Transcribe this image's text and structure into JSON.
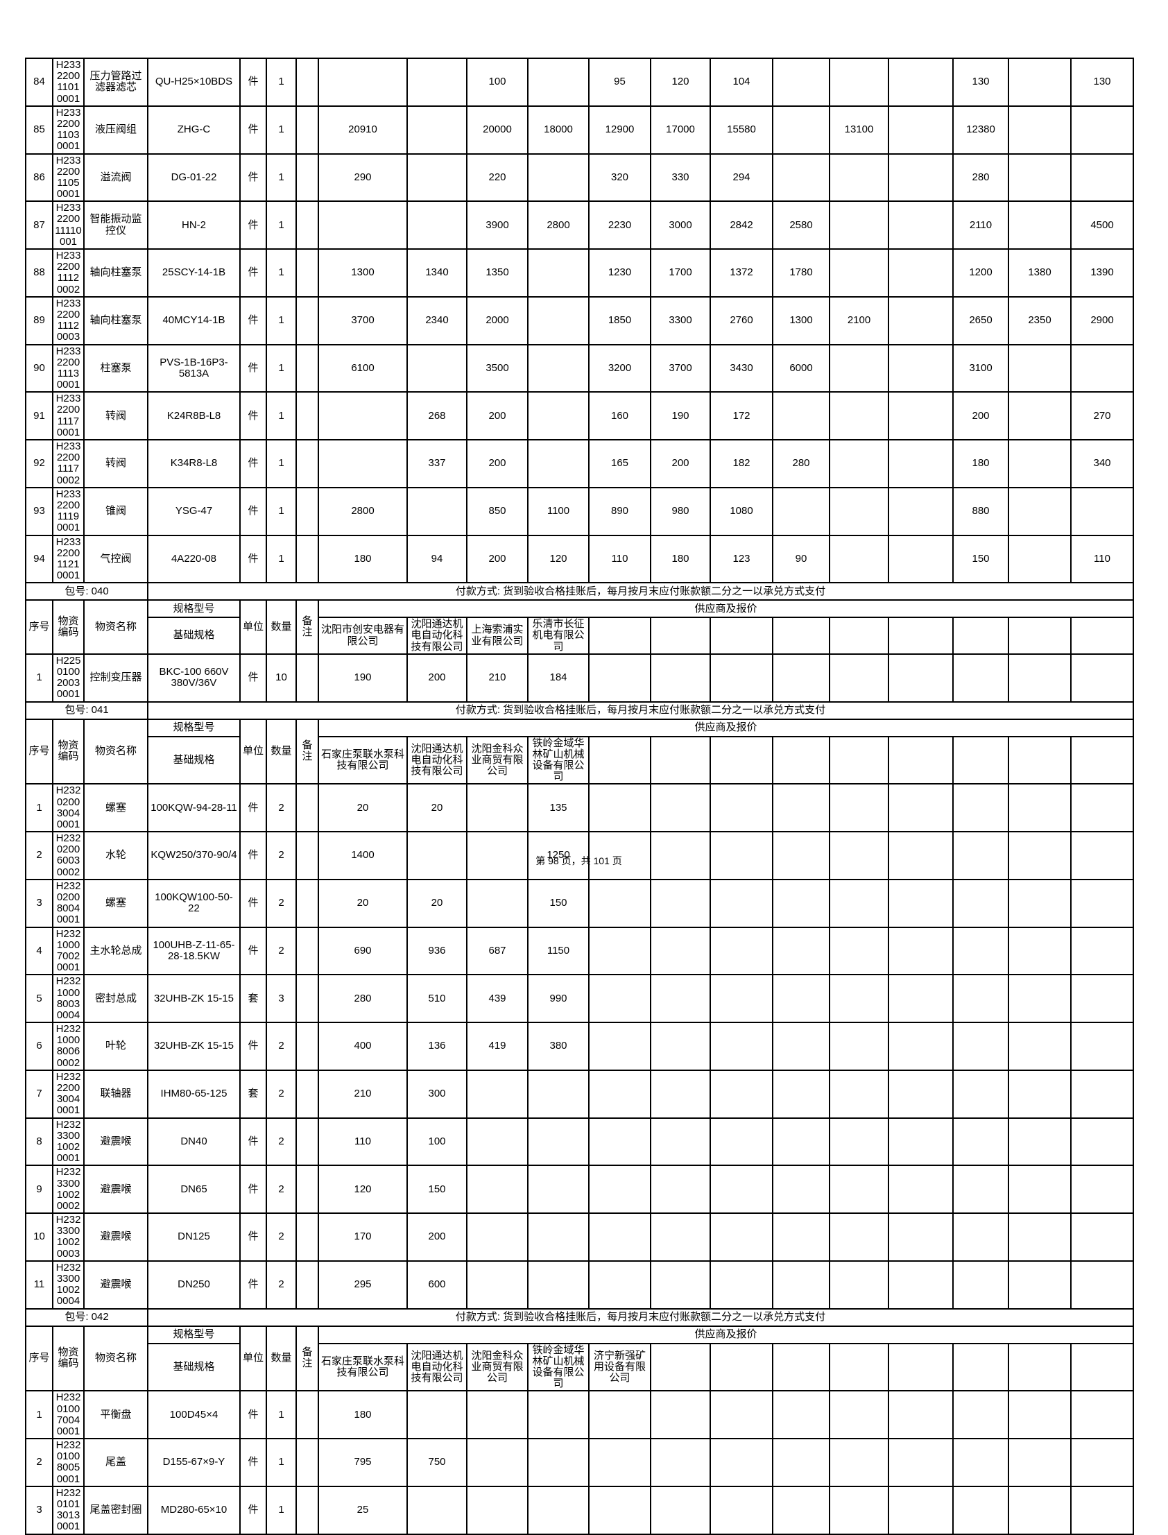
{
  "labels": {
    "seq": "序号",
    "material_code": "物资编码",
    "material_name": "物资名称",
    "spec_model": "规格型号",
    "base_spec": "基础规格",
    "unit": "单位",
    "qty": "数量",
    "remark": "备注",
    "suppliers_and_quotes": "供应商及报价",
    "package_label": "包号:",
    "payment_text": "付款方式: 货到验收合格挂账后，每月按月末应付账款额二分之一以承兑方式支付"
  },
  "price_col_count": 13,
  "continuation_rows": [
    {
      "seq": "84",
      "code": [
        "H2332200",
        "11010001"
      ],
      "name": "压力管路过滤器滤芯",
      "spec": "QU-H25×10BDS",
      "unit": "件",
      "qty": "1",
      "remark": "",
      "prices": [
        "",
        "",
        "100",
        "",
        "95",
        "120",
        "104",
        "",
        "",
        "",
        "130",
        "",
        "130"
      ]
    },
    {
      "seq": "85",
      "code": [
        "H2332200",
        "11030001"
      ],
      "name": "液压阀组",
      "spec": "ZHG-C",
      "unit": "件",
      "qty": "1",
      "remark": "",
      "prices": [
        "20910",
        "",
        "20000",
        "18000",
        "12900",
        "17000",
        "15580",
        "",
        "13100",
        "",
        "12380",
        "",
        ""
      ]
    },
    {
      "seq": "86",
      "code": [
        "H2332200",
        "11050001"
      ],
      "name": "溢流阀",
      "spec": "DG-01-22",
      "unit": "件",
      "qty": "1",
      "remark": "",
      "prices": [
        "290",
        "",
        "220",
        "",
        "320",
        "330",
        "294",
        "",
        "",
        "",
        "280",
        "",
        ""
      ]
    },
    {
      "seq": "87",
      "code": [
        "H2332200",
        "11110001"
      ],
      "name": "智能振动监控仪",
      "spec": "HN-2",
      "unit": "件",
      "qty": "1",
      "remark": "",
      "prices": [
        "",
        "",
        "3900",
        "2800",
        "2230",
        "3000",
        "2842",
        "2580",
        "",
        "",
        "2110",
        "",
        "4500"
      ]
    },
    {
      "seq": "88",
      "code": [
        "H2332200",
        "11120002"
      ],
      "name": "轴向柱塞泵",
      "spec": "25SCY-14-1B",
      "unit": "件",
      "qty": "1",
      "remark": "",
      "prices": [
        "1300",
        "1340",
        "1350",
        "",
        "1230",
        "1700",
        "1372",
        "1780",
        "",
        "",
        "1200",
        "1380",
        "1390"
      ]
    },
    {
      "seq": "89",
      "code": [
        "H2332200",
        "11120003"
      ],
      "name": "轴向柱塞泵",
      "spec": "40MCY14-1B",
      "unit": "件",
      "qty": "1",
      "remark": "",
      "prices": [
        "3700",
        "2340",
        "2000",
        "",
        "1850",
        "3300",
        "2760",
        "1300",
        "2100",
        "",
        "2650",
        "2350",
        "2900"
      ]
    },
    {
      "seq": "90",
      "code": [
        "H2332200",
        "11130001"
      ],
      "name": "柱塞泵",
      "spec": "PVS-1B-16P3-5813A",
      "unit": "件",
      "qty": "1",
      "remark": "",
      "prices": [
        "6100",
        "",
        "3500",
        "",
        "3200",
        "3700",
        "3430",
        "6000",
        "",
        "",
        "3100",
        "",
        ""
      ]
    },
    {
      "seq": "91",
      "code": [
        "H2332200",
        "11170001"
      ],
      "name": "转阀",
      "spec": "K24R8B-L8",
      "unit": "件",
      "qty": "1",
      "remark": "",
      "prices": [
        "",
        "268",
        "200",
        "",
        "160",
        "190",
        "172",
        "",
        "",
        "",
        "200",
        "",
        "270"
      ]
    },
    {
      "seq": "92",
      "code": [
        "H2332200",
        "11170002"
      ],
      "name": "转阀",
      "spec": "K34R8-L8",
      "unit": "件",
      "qty": "1",
      "remark": "",
      "prices": [
        "",
        "337",
        "200",
        "",
        "165",
        "200",
        "182",
        "280",
        "",
        "",
        "180",
        "",
        "340"
      ]
    },
    {
      "seq": "93",
      "code": [
        "H2332200",
        "11190001"
      ],
      "name": "锥阀",
      "spec": "YSG-47",
      "unit": "件",
      "qty": "1",
      "remark": "",
      "prices": [
        "2800",
        "",
        "850",
        "1100",
        "890",
        "980",
        "1080",
        "",
        "",
        "",
        "880",
        "",
        ""
      ]
    },
    {
      "seq": "94",
      "code": [
        "H2332200",
        "11210001"
      ],
      "name": "气控阀",
      "spec": "4A220-08",
      "unit": "件",
      "qty": "1",
      "remark": "",
      "prices": [
        "180",
        "94",
        "200",
        "120",
        "110",
        "180",
        "123",
        "90",
        "",
        "",
        "150",
        "",
        "110"
      ]
    }
  ],
  "packages": [
    {
      "no": "040",
      "suppliers": [
        "沈阳市创安电器有限公司",
        "沈阳通达机电自动化科技有限公司",
        "上海索浦实业有限公司",
        "乐清市长征机电有限公司"
      ],
      "rows": [
        {
          "seq": "1",
          "code": [
            "H2250100",
            "20030001"
          ],
          "name": "控制变压器",
          "spec": "BKC-100 660V 380V/36V",
          "unit": "件",
          "qty": "10",
          "remark": "",
          "prices": [
            "190",
            "200",
            "210",
            "184"
          ]
        }
      ]
    },
    {
      "no": "041",
      "suppliers": [
        "石家庄泵联水泵科技有限公司",
        "沈阳通达机电自动化科技有限公司",
        "沈阳金科众业商贸有限公司",
        "铁岭金域华林矿山机械设备有限公司"
      ],
      "rows": [
        {
          "seq": "1",
          "code": [
            "H2320200",
            "30040001"
          ],
          "name": "螺塞",
          "spec": "100KQW-94-28-11",
          "unit": "件",
          "qty": "2",
          "remark": "",
          "prices": [
            "20",
            "20",
            "",
            "135"
          ]
        },
        {
          "seq": "2",
          "code": [
            "H2320200",
            "60030002"
          ],
          "name": "水轮",
          "spec": "KQW250/370-90/4",
          "unit": "件",
          "qty": "2",
          "remark": "",
          "prices": [
            "1400",
            "",
            "",
            "1250"
          ]
        },
        {
          "seq": "3",
          "code": [
            "H2320200",
            "80040001"
          ],
          "name": "螺塞",
          "spec": "100KQW100-50-22",
          "unit": "件",
          "qty": "2",
          "remark": "",
          "prices": [
            "20",
            "20",
            "",
            "150"
          ]
        },
        {
          "seq": "4",
          "code": [
            "H2321000",
            "70020001"
          ],
          "name": "主水轮总成",
          "spec": "100UHB-Z-11-65-28-18.5KW",
          "unit": "件",
          "qty": "2",
          "remark": "",
          "prices": [
            "690",
            "936",
            "687",
            "1150"
          ]
        },
        {
          "seq": "5",
          "code": [
            "H2321000",
            "80030004"
          ],
          "name": "密封总成",
          "spec": "32UHB-ZK 15-15",
          "unit": "套",
          "qty": "3",
          "remark": "",
          "prices": [
            "280",
            "510",
            "439",
            "990"
          ]
        },
        {
          "seq": "6",
          "code": [
            "H2321000",
            "80060002"
          ],
          "name": "叶轮",
          "spec": "32UHB-ZK 15-15",
          "unit": "件",
          "qty": "2",
          "remark": "",
          "prices": [
            "400",
            "136",
            "419",
            "380"
          ]
        },
        {
          "seq": "7",
          "code": [
            "H2322200",
            "30040001"
          ],
          "name": "联轴器",
          "spec": "IHM80-65-125",
          "unit": "套",
          "qty": "2",
          "remark": "",
          "prices": [
            "210",
            "300",
            "",
            ""
          ]
        },
        {
          "seq": "8",
          "code": [
            "H2323300",
            "10020001"
          ],
          "name": "避震喉",
          "spec": "DN40",
          "unit": "件",
          "qty": "2",
          "remark": "",
          "prices": [
            "110",
            "100",
            "",
            ""
          ]
        },
        {
          "seq": "9",
          "code": [
            "H2323300",
            "10020002"
          ],
          "name": "避震喉",
          "spec": "DN65",
          "unit": "件",
          "qty": "2",
          "remark": "",
          "prices": [
            "120",
            "150",
            "",
            ""
          ]
        },
        {
          "seq": "10",
          "code": [
            "H2323300",
            "10020003"
          ],
          "name": "避震喉",
          "spec": "DN125",
          "unit": "件",
          "qty": "2",
          "remark": "",
          "prices": [
            "170",
            "200",
            "",
            ""
          ]
        },
        {
          "seq": "11",
          "code": [
            "H2323300",
            "10020004"
          ],
          "name": "避震喉",
          "spec": "DN250",
          "unit": "件",
          "qty": "2",
          "remark": "",
          "prices": [
            "295",
            "600",
            "",
            ""
          ]
        }
      ]
    },
    {
      "no": "042",
      "suppliers": [
        "石家庄泵联水泵科技有限公司",
        "沈阳通达机电自动化科技有限公司",
        "沈阳金科众业商贸有限公司",
        "铁岭金域华林矿山机械设备有限公司",
        "济宁新强矿用设备有限公司"
      ],
      "rows": [
        {
          "seq": "1",
          "code": [
            "H2320100",
            "70040001"
          ],
          "name": "平衡盘",
          "spec": "100D45×4",
          "unit": "件",
          "qty": "1",
          "remark": "",
          "prices": [
            "180",
            "",
            "",
            "",
            ""
          ]
        },
        {
          "seq": "2",
          "code": [
            "H2320100",
            "80050001"
          ],
          "name": "尾盖",
          "spec": "D155-67×9-Y",
          "unit": "件",
          "qty": "1",
          "remark": "",
          "prices": [
            "795",
            "750",
            "",
            "",
            ""
          ]
        },
        {
          "seq": "3",
          "code": [
            "H2320101",
            "30130001"
          ],
          "name": "尾盖密封圈",
          "spec": "MD280-65×10",
          "unit": "件",
          "qty": "1",
          "remark": "",
          "prices": [
            "25",
            "",
            "",
            "",
            ""
          ]
        }
      ]
    }
  ],
  "footer": {
    "text": "第 98 页，共 101 页"
  }
}
